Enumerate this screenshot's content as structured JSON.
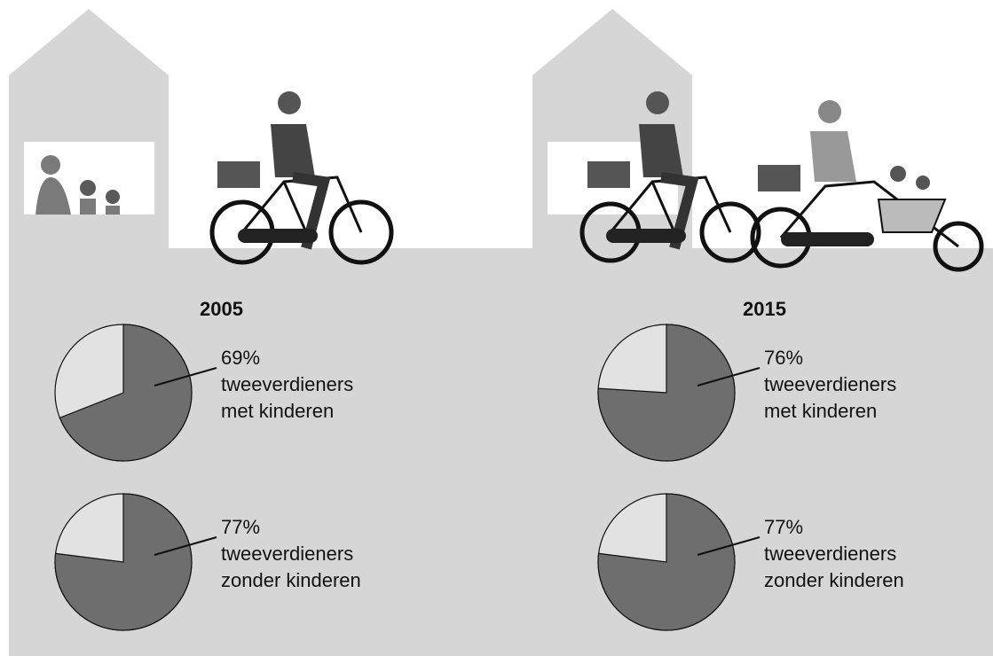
{
  "chart_data": [
    {
      "type": "pie",
      "title": "2005",
      "values": [
        69
      ],
      "value_labels": [
        "69%"
      ],
      "categories": [
        "tweeverdieners met kinderen"
      ],
      "colors": [
        "#6e6e6e",
        "#e2e2e2"
      ]
    },
    {
      "type": "pie",
      "values": [
        77
      ],
      "value_labels": [
        "77%"
      ],
      "categories": [
        "tweeverdieners zonder kinderen"
      ],
      "colors": [
        "#6e6e6e",
        "#e2e2e2"
      ]
    },
    {
      "type": "pie",
      "title": "2015",
      "values": [
        76
      ],
      "value_labels": [
        "76%"
      ],
      "categories": [
        "tweeverdieners met kinderen"
      ],
      "colors": [
        "#6e6e6e",
        "#e2e2e2"
      ]
    },
    {
      "type": "pie",
      "values": [
        77
      ],
      "value_labels": [
        "77%"
      ],
      "categories": [
        "tweeverdieners zonder kinderen"
      ],
      "colors": [
        "#6e6e6e",
        "#e2e2e2"
      ]
    }
  ]
}
